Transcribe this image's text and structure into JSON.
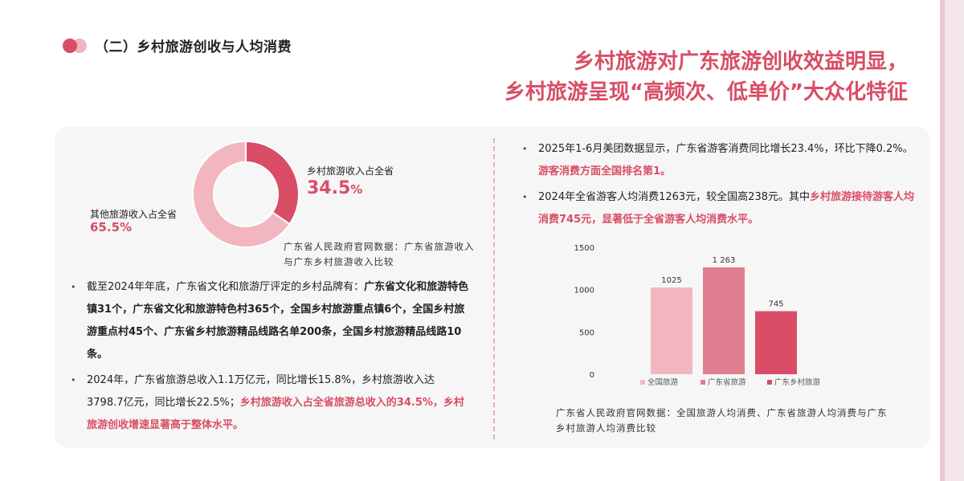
{
  "section": {
    "title": "（二）乡村旅游创收与人均消费"
  },
  "headline": {
    "line1": "乡村旅游对广东旅游创收效益明显，",
    "line2": "乡村旅游呈现“高频次、低单价”大众化特征"
  },
  "colors": {
    "accent": "#d94d66",
    "pink_mid": "#e07d8f",
    "pink_light": "#f2b6c0",
    "panel": "#f6f6f6"
  },
  "donut": {
    "rural_label": "乡村旅游收入占全省",
    "rural_value": "34.5",
    "rural_unit": "%",
    "other_label": "其他旅游收入占全省",
    "other_value": "65.5%",
    "caption": "广东省人民政府官网数据：广东省旅游收入与广东乡村旅游收入比较"
  },
  "left_bullets": {
    "b1_text": "截至2024年年底，广东省文化和旅游厅评定的乡村品牌有：",
    "b1_bold": "广东省文化和旅游特色镇31个，广东省文化和旅游特色村365个，全国乡村旅游重点镇6个，全国乡村旅游重点村45个、广东省乡村旅游精品线路名单200条，全国乡村旅游精品线路10条。",
    "b2_text": "2024年，广东省旅游总收入1.1万亿元，同比增长15.8%，乡村旅游收入达3798.7亿元，同比增长22.5%；",
    "b2_highlight": "乡村旅游收入占全省旅游总收入的34.5%，乡村旅游创收增速显著高于整体水平。"
  },
  "right_bullets": {
    "b1_text": "2025年1-6月美团数据显示，广东省游客消费同比增长23.4%，环比下降0.2%。",
    "b1_highlight": "游客消费方面全国排名第1。",
    "b2_text": "2024年全省游客人均消费1263元，较全国高238元。其中",
    "b2_highlight": "乡村旅游接待游客人均消费745元，显著低于全省游客人均消费水平。"
  },
  "chart_caption": "广东省人民政府官网数据：全国旅游人均消费、广东省旅游人均消费与广东乡村旅游人均消费比较",
  "chart_data": [
    {
      "type": "pie",
      "categories": [
        "乡村旅游收入占全省",
        "其他旅游收入占全省"
      ],
      "values": [
        34.5,
        65.5
      ],
      "colors": [
        "#d94d66",
        "#f2b6c0"
      ],
      "title": "",
      "xlabel": "",
      "ylabel": ""
    },
    {
      "type": "bar",
      "categories": [
        "全国旅游",
        "广东省旅游",
        "广东乡村旅游"
      ],
      "values": [
        1025,
        1263,
        745
      ],
      "data_labels": [
        "1025",
        "1 263",
        "745"
      ],
      "colors": [
        "#f2b6c0",
        "#e07d8f",
        "#d94d66"
      ],
      "yticks": [
        "0",
        "500",
        "1000",
        "1500"
      ],
      "ylim": [
        0,
        1500
      ],
      "legend": "bottom",
      "grid": false,
      "title": "",
      "xlabel": "",
      "ylabel": ""
    }
  ]
}
